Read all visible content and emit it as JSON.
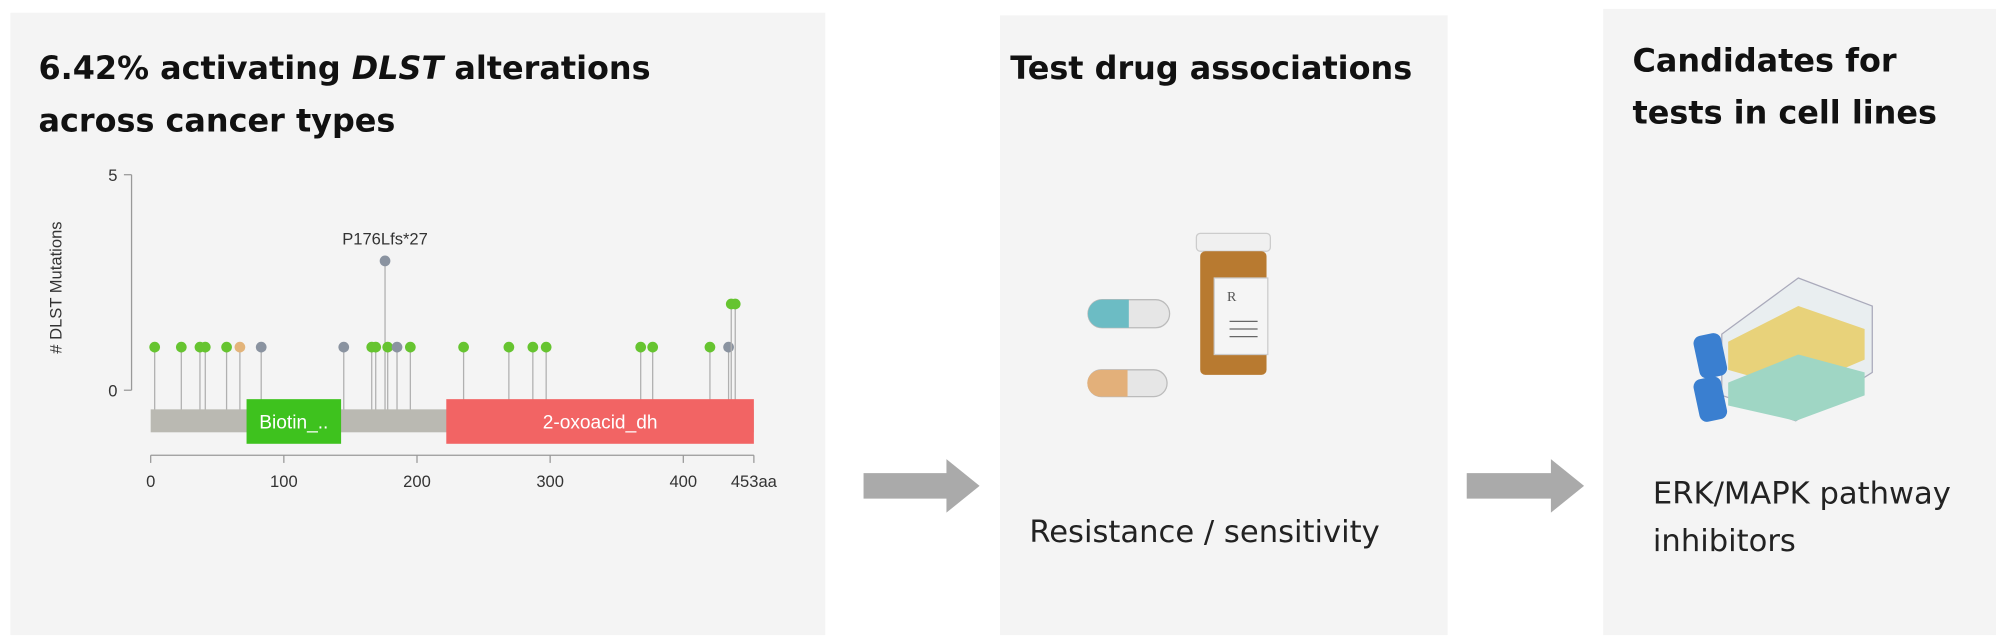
{
  "panels": [
    {
      "title_lines": [
        [
          {
            "text": "6.42% activating "
          },
          {
            "text": "DLST",
            "italic": true
          },
          {
            "text": " alterations"
          }
        ],
        [
          {
            "text": "across cancer types"
          }
        ]
      ],
      "chart": {
        "type": "lollipop",
        "y_label": "# DLST Mutations",
        "ylim": [
          0,
          5
        ],
        "yticks": [
          0,
          5
        ],
        "xlim": [
          0,
          453
        ],
        "xticks": [
          0,
          100,
          200,
          300,
          400,
          {
            "value": 453,
            "label": "453aa"
          }
        ],
        "domains": [
          {
            "name": "Biotin_..",
            "start": 72,
            "end": 143,
            "color": "#3ec21e"
          },
          {
            "name": "2-oxoacid_dh",
            "start": 222,
            "end": 453,
            "color": "#f26464"
          }
        ],
        "mutations": {
          "positions": [
            3,
            23,
            37,
            41,
            57,
            67,
            83,
            145,
            166,
            169,
            176,
            178,
            185,
            195,
            235,
            269,
            287,
            297,
            368,
            377,
            420,
            434,
            436,
            439
          ],
          "counts": [
            1,
            1,
            1,
            1,
            1,
            1,
            1,
            1,
            1,
            1,
            3,
            1,
            1,
            1,
            1,
            1,
            1,
            1,
            1,
            1,
            1,
            1,
            2,
            2
          ],
          "colors": [
            "#66c430",
            "#66c430",
            "#66c430",
            "#66c430",
            "#66c430",
            "#e3b47a",
            "#8a93a0",
            "#8a93a0",
            "#66c430",
            "#66c430",
            "#8a93a0",
            "#66c430",
            "#8a93a0",
            "#66c430",
            "#66c430",
            "#66c430",
            "#66c430",
            "#66c430",
            "#66c430",
            "#66c430",
            "#66c430",
            "#8a93a0",
            "#66c430",
            "#66c430"
          ]
        },
        "annotation": {
          "text": "P176Lfs*27",
          "at": 176,
          "count": 3
        }
      }
    },
    {
      "title_lines": [
        [
          {
            "text": "Test drug associations"
          }
        ]
      ],
      "caption_lines": [
        "Resistance / sensitivity"
      ]
    },
    {
      "title_lines": [
        [
          {
            "text": "Candidates for"
          }
        ],
        [
          {
            "text": "tests in cell lines"
          }
        ]
      ],
      "caption_lines": [
        "ERK/MAPK pathway",
        "inhibitors"
      ]
    }
  ]
}
